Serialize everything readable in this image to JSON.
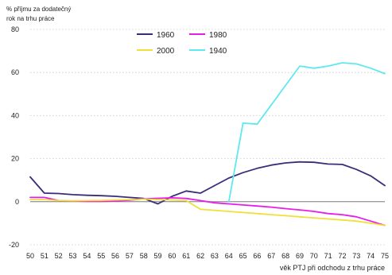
{
  "chart_data": {
    "type": "line",
    "ylabel": [
      "% příjmu za dodatečný",
      "rok na trhu práce"
    ],
    "xlabel": "věk PTJ při odchodu z trhu práce",
    "x": [
      50,
      51,
      52,
      53,
      54,
      55,
      56,
      57,
      58,
      59,
      60,
      61,
      62,
      63,
      64,
      65,
      66,
      67,
      68,
      69,
      70,
      71,
      72,
      73,
      74,
      75
    ],
    "x_tick_labels": [
      "50",
      "51",
      "52",
      "53",
      "54",
      "55",
      "56",
      "57",
      "58",
      "59",
      "60",
      "61",
      "62",
      "63",
      "64",
      "65",
      "66",
      "67",
      "68",
      "69",
      "70",
      "71",
      "72",
      "73",
      "74",
      "75"
    ],
    "ylim": [
      -20,
      80
    ],
    "y_ticks": [
      -20,
      0,
      20,
      40,
      60,
      80
    ],
    "y_tick_labels": [
      "-20",
      "0",
      "20",
      "40",
      "60",
      "80"
    ],
    "grid": "horizontal dotted",
    "legend": "top-center",
    "series": [
      {
        "name": "1960",
        "color": "#3b2c7a",
        "values": [
          11.5,
          4.0,
          3.8,
          3.3,
          3.0,
          2.8,
          2.5,
          2.0,
          1.5,
          -1.0,
          2.5,
          5.0,
          4.0,
          7.5,
          11.0,
          13.5,
          15.5,
          17.0,
          18.0,
          18.5,
          18.3,
          17.5,
          17.3,
          15.0,
          12.0,
          7.5
        ]
      },
      {
        "name": "1980",
        "color": "#e81ce8",
        "values": [
          2.0,
          2.0,
          0.5,
          0.3,
          0.2,
          0.2,
          0.3,
          0.7,
          1.3,
          1.6,
          1.8,
          1.5,
          0.5,
          -0.5,
          -1.0,
          -1.5,
          -2.0,
          -2.5,
          -3.2,
          -3.8,
          -4.5,
          -5.5,
          -6.0,
          -7.0,
          -9.0,
          -11.0
        ]
      },
      {
        "name": "2000",
        "color": "#f0e03c",
        "values": [
          1.0,
          1.0,
          0.5,
          0.4,
          0.5,
          0.6,
          0.8,
          1.0,
          1.2,
          1.0,
          0.8,
          0.5,
          -3.5,
          -4.0,
          -4.5,
          -5.0,
          -5.5,
          -6.0,
          -6.5,
          -7.0,
          -7.5,
          -8.0,
          -8.5,
          -9.0,
          -10.0,
          -11.0
        ]
      },
      {
        "name": "1940",
        "color": "#5fe8ee",
        "values": [
          null,
          null,
          null,
          null,
          null,
          null,
          null,
          null,
          null,
          null,
          null,
          null,
          null,
          null,
          0.0,
          36.5,
          36.0,
          45.0,
          54.0,
          63.0,
          62.0,
          63.0,
          64.5,
          64.0,
          62.0,
          59.5
        ]
      }
    ]
  }
}
